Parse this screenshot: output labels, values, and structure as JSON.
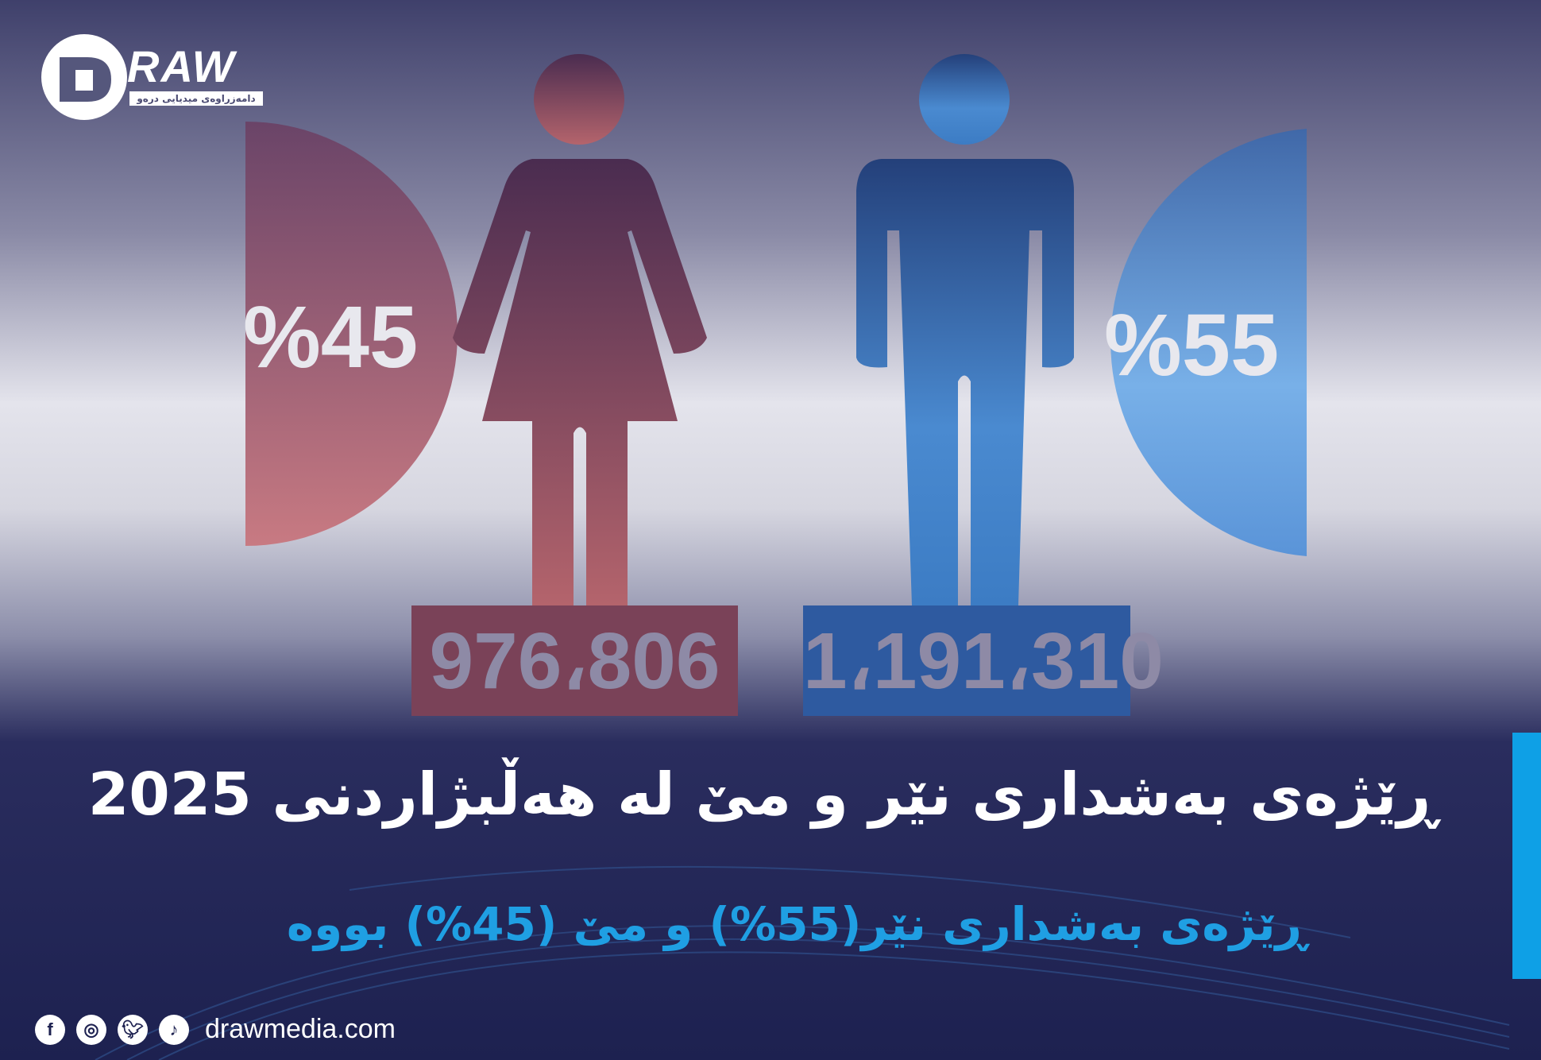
{
  "logo": {
    "wordmark": "RAW",
    "letter": "D",
    "tagline": "دامەزراوەی میدیایی درەو"
  },
  "infographic": {
    "female": {
      "percent": "%45",
      "count": "976،806",
      "color": "#a85e66"
    },
    "male": {
      "percent": "%55",
      "count": "1،191،310",
      "color": "#3f78c0"
    }
  },
  "title": "ڕێژەی بەشداری نێر و مێ لە هەڵبژاردنی 2025",
  "subtitle": "ڕێژەی بەشداری نێر(55%) و مێ (45%) بووە",
  "footer": {
    "icons": [
      "facebook-icon",
      "instagram-icon",
      "twitter-icon",
      "tiktok-icon"
    ],
    "website": "drawmedia.com"
  },
  "colors": {
    "accent": "#0ea0e6",
    "background_dark": "#1d2150"
  }
}
